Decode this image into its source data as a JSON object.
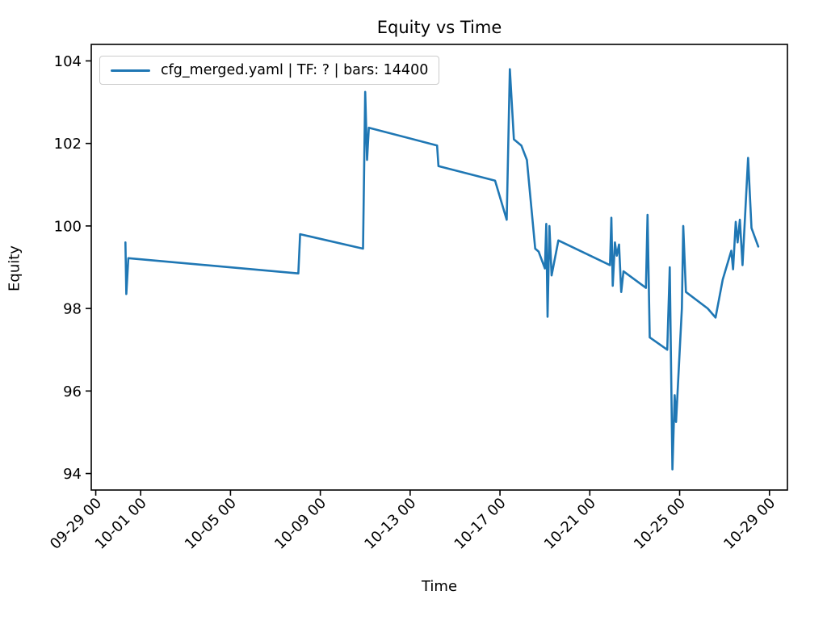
{
  "figure": {
    "title": "Equity vs Time",
    "xlabel": "Time",
    "ylabel": "Equity"
  },
  "chart_data": {
    "type": "line",
    "title": "Equity vs Time",
    "xlabel": "Time",
    "ylabel": "Equity",
    "grid": false,
    "legend_position": "upper left",
    "xlim": [
      -0.2,
      30.8
    ],
    "ylim": [
      93.6,
      104.4
    ],
    "x_unit": "days since 09-29 00:00, tick labels formatted MM-DD HH",
    "x_ticks": [
      {
        "day": 0,
        "label": "09-29 00"
      },
      {
        "day": 2,
        "label": "10-01 00"
      },
      {
        "day": 6,
        "label": "10-05 00"
      },
      {
        "day": 10,
        "label": "10-09 00"
      },
      {
        "day": 14,
        "label": "10-13 00"
      },
      {
        "day": 18,
        "label": "10-17 00"
      },
      {
        "day": 22,
        "label": "10-21 00"
      },
      {
        "day": 26,
        "label": "10-25 00"
      },
      {
        "day": 30,
        "label": "10-29 00"
      }
    ],
    "y_ticks": [
      94,
      96,
      98,
      100,
      102,
      104
    ],
    "series": [
      {
        "name": "cfg_merged.yaml | TF: ? | bars: 14400",
        "color": "#1f77b4",
        "points": [
          [
            1.32,
            99.6
          ],
          [
            1.36,
            98.35
          ],
          [
            1.45,
            99.22
          ],
          [
            9.02,
            98.85
          ],
          [
            9.1,
            99.8
          ],
          [
            11.9,
            99.45
          ],
          [
            12.0,
            103.25
          ],
          [
            12.08,
            101.6
          ],
          [
            12.16,
            102.38
          ],
          [
            15.2,
            101.95
          ],
          [
            15.26,
            101.45
          ],
          [
            17.78,
            101.1
          ],
          [
            18.3,
            100.15
          ],
          [
            18.44,
            103.8
          ],
          [
            18.62,
            102.1
          ],
          [
            18.95,
            101.95
          ],
          [
            19.2,
            101.6
          ],
          [
            19.57,
            99.45
          ],
          [
            19.72,
            99.38
          ],
          [
            20.0,
            98.97
          ],
          [
            20.06,
            100.05
          ],
          [
            20.12,
            97.8
          ],
          [
            20.2,
            100.0
          ],
          [
            20.3,
            98.8
          ],
          [
            20.6,
            99.65
          ],
          [
            22.9,
            99.05
          ],
          [
            22.96,
            100.2
          ],
          [
            23.02,
            98.55
          ],
          [
            23.12,
            99.6
          ],
          [
            23.2,
            99.28
          ],
          [
            23.3,
            99.55
          ],
          [
            23.4,
            98.4
          ],
          [
            23.5,
            98.9
          ],
          [
            24.5,
            98.5
          ],
          [
            24.57,
            100.27
          ],
          [
            24.67,
            97.3
          ],
          [
            25.45,
            97.0
          ],
          [
            25.56,
            99.0
          ],
          [
            25.68,
            94.1
          ],
          [
            25.78,
            95.9
          ],
          [
            25.84,
            95.25
          ],
          [
            26.1,
            98.0
          ],
          [
            26.16,
            100.0
          ],
          [
            26.28,
            98.4
          ],
          [
            27.25,
            98.0
          ],
          [
            27.6,
            97.78
          ],
          [
            27.92,
            98.7
          ],
          [
            28.3,
            99.4
          ],
          [
            28.38,
            98.95
          ],
          [
            28.5,
            100.1
          ],
          [
            28.58,
            99.6
          ],
          [
            28.68,
            100.15
          ],
          [
            28.8,
            99.05
          ],
          [
            29.05,
            101.65
          ],
          [
            29.2,
            99.95
          ],
          [
            29.5,
            99.5
          ]
        ]
      }
    ]
  }
}
